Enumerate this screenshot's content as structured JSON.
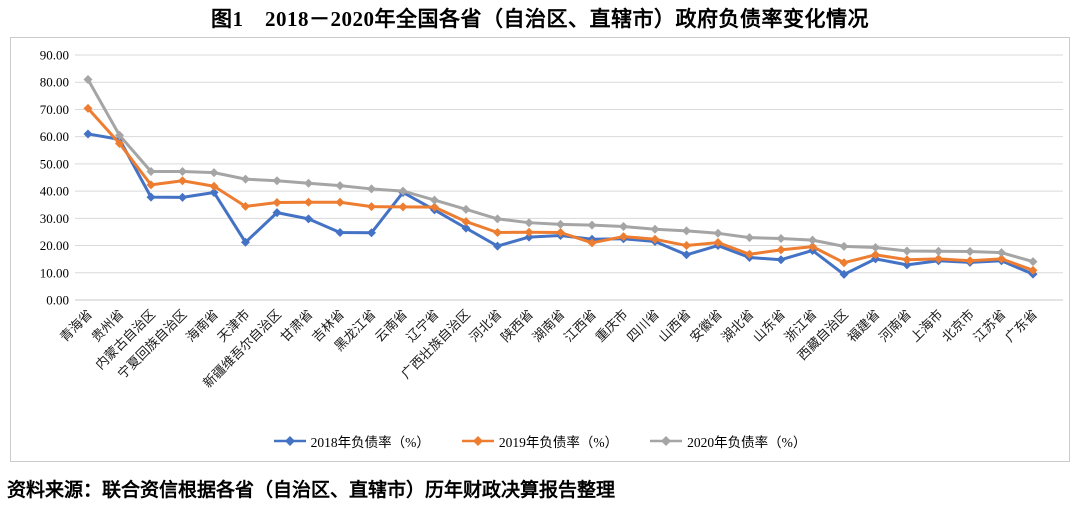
{
  "title": "图1　2018－2020年全国各省（自治区、直辖市）政府负债率变化情况",
  "source_note": "资料来源：联合资信根据各省（自治区、直辖市）历年财政决算报告整理",
  "chart_data": {
    "type": "line",
    "title": "图1　2018－2020年全国各省（自治区、直辖市）政府负债率变化情况",
    "xlabel": "",
    "ylabel": "",
    "ylim": [
      0,
      90
    ],
    "ytick_step": 10,
    "ytick_decimals": 2,
    "grid": true,
    "legend_position": "bottom",
    "marker": "diamond",
    "categories": [
      "青海省",
      "贵州省",
      "内蒙古自治区",
      "宁夏回族自治区",
      "海南省",
      "天津市",
      "新疆维吾尔自治区",
      "甘肃省",
      "吉林省",
      "黑龙江省",
      "云南省",
      "辽宁省",
      "广西壮族自治区",
      "河北省",
      "陕西省",
      "湖南省",
      "江西省",
      "重庆市",
      "四川省",
      "山西省",
      "安徽省",
      "湖北省",
      "山东省",
      "浙江省",
      "西藏自治区",
      "福建省",
      "河南省",
      "上海市",
      "北京市",
      "江苏省",
      "广东省"
    ],
    "series": [
      {
        "name": "2018年负债率（%）",
        "color": "#4472C4",
        "values": [
          61.0,
          59.0,
          37.8,
          37.7,
          39.5,
          21.2,
          32.1,
          29.8,
          24.8,
          24.7,
          39.5,
          33.1,
          26.4,
          19.8,
          23.1,
          23.7,
          22.3,
          22.5,
          21.5,
          16.6,
          20.0,
          15.6,
          14.8,
          18.2,
          9.4,
          15.1,
          12.9,
          14.4,
          13.8,
          14.4,
          9.5
        ]
      },
      {
        "name": "2019年负债率（%）",
        "color": "#ED7D31",
        "values": [
          70.4,
          57.5,
          42.3,
          43.8,
          41.8,
          34.4,
          35.8,
          35.9,
          35.9,
          34.3,
          34.2,
          34.1,
          28.8,
          24.8,
          24.9,
          24.8,
          21.0,
          23.3,
          22.3,
          20.0,
          21.1,
          16.8,
          18.4,
          19.6,
          13.7,
          16.6,
          14.8,
          15.1,
          14.4,
          15.1,
          10.9
        ]
      },
      {
        "name": "2020年负债率（%）",
        "color": "#A5A5A5",
        "values": [
          81.0,
          60.5,
          47.2,
          47.2,
          46.8,
          44.4,
          43.8,
          42.9,
          42.0,
          40.8,
          40.0,
          36.7,
          33.3,
          29.8,
          28.4,
          27.8,
          27.5,
          27.0,
          26.0,
          25.4,
          24.5,
          22.9,
          22.6,
          22.0,
          19.7,
          19.3,
          18.0,
          17.9,
          17.8,
          17.4,
          14.1
        ]
      }
    ]
  }
}
